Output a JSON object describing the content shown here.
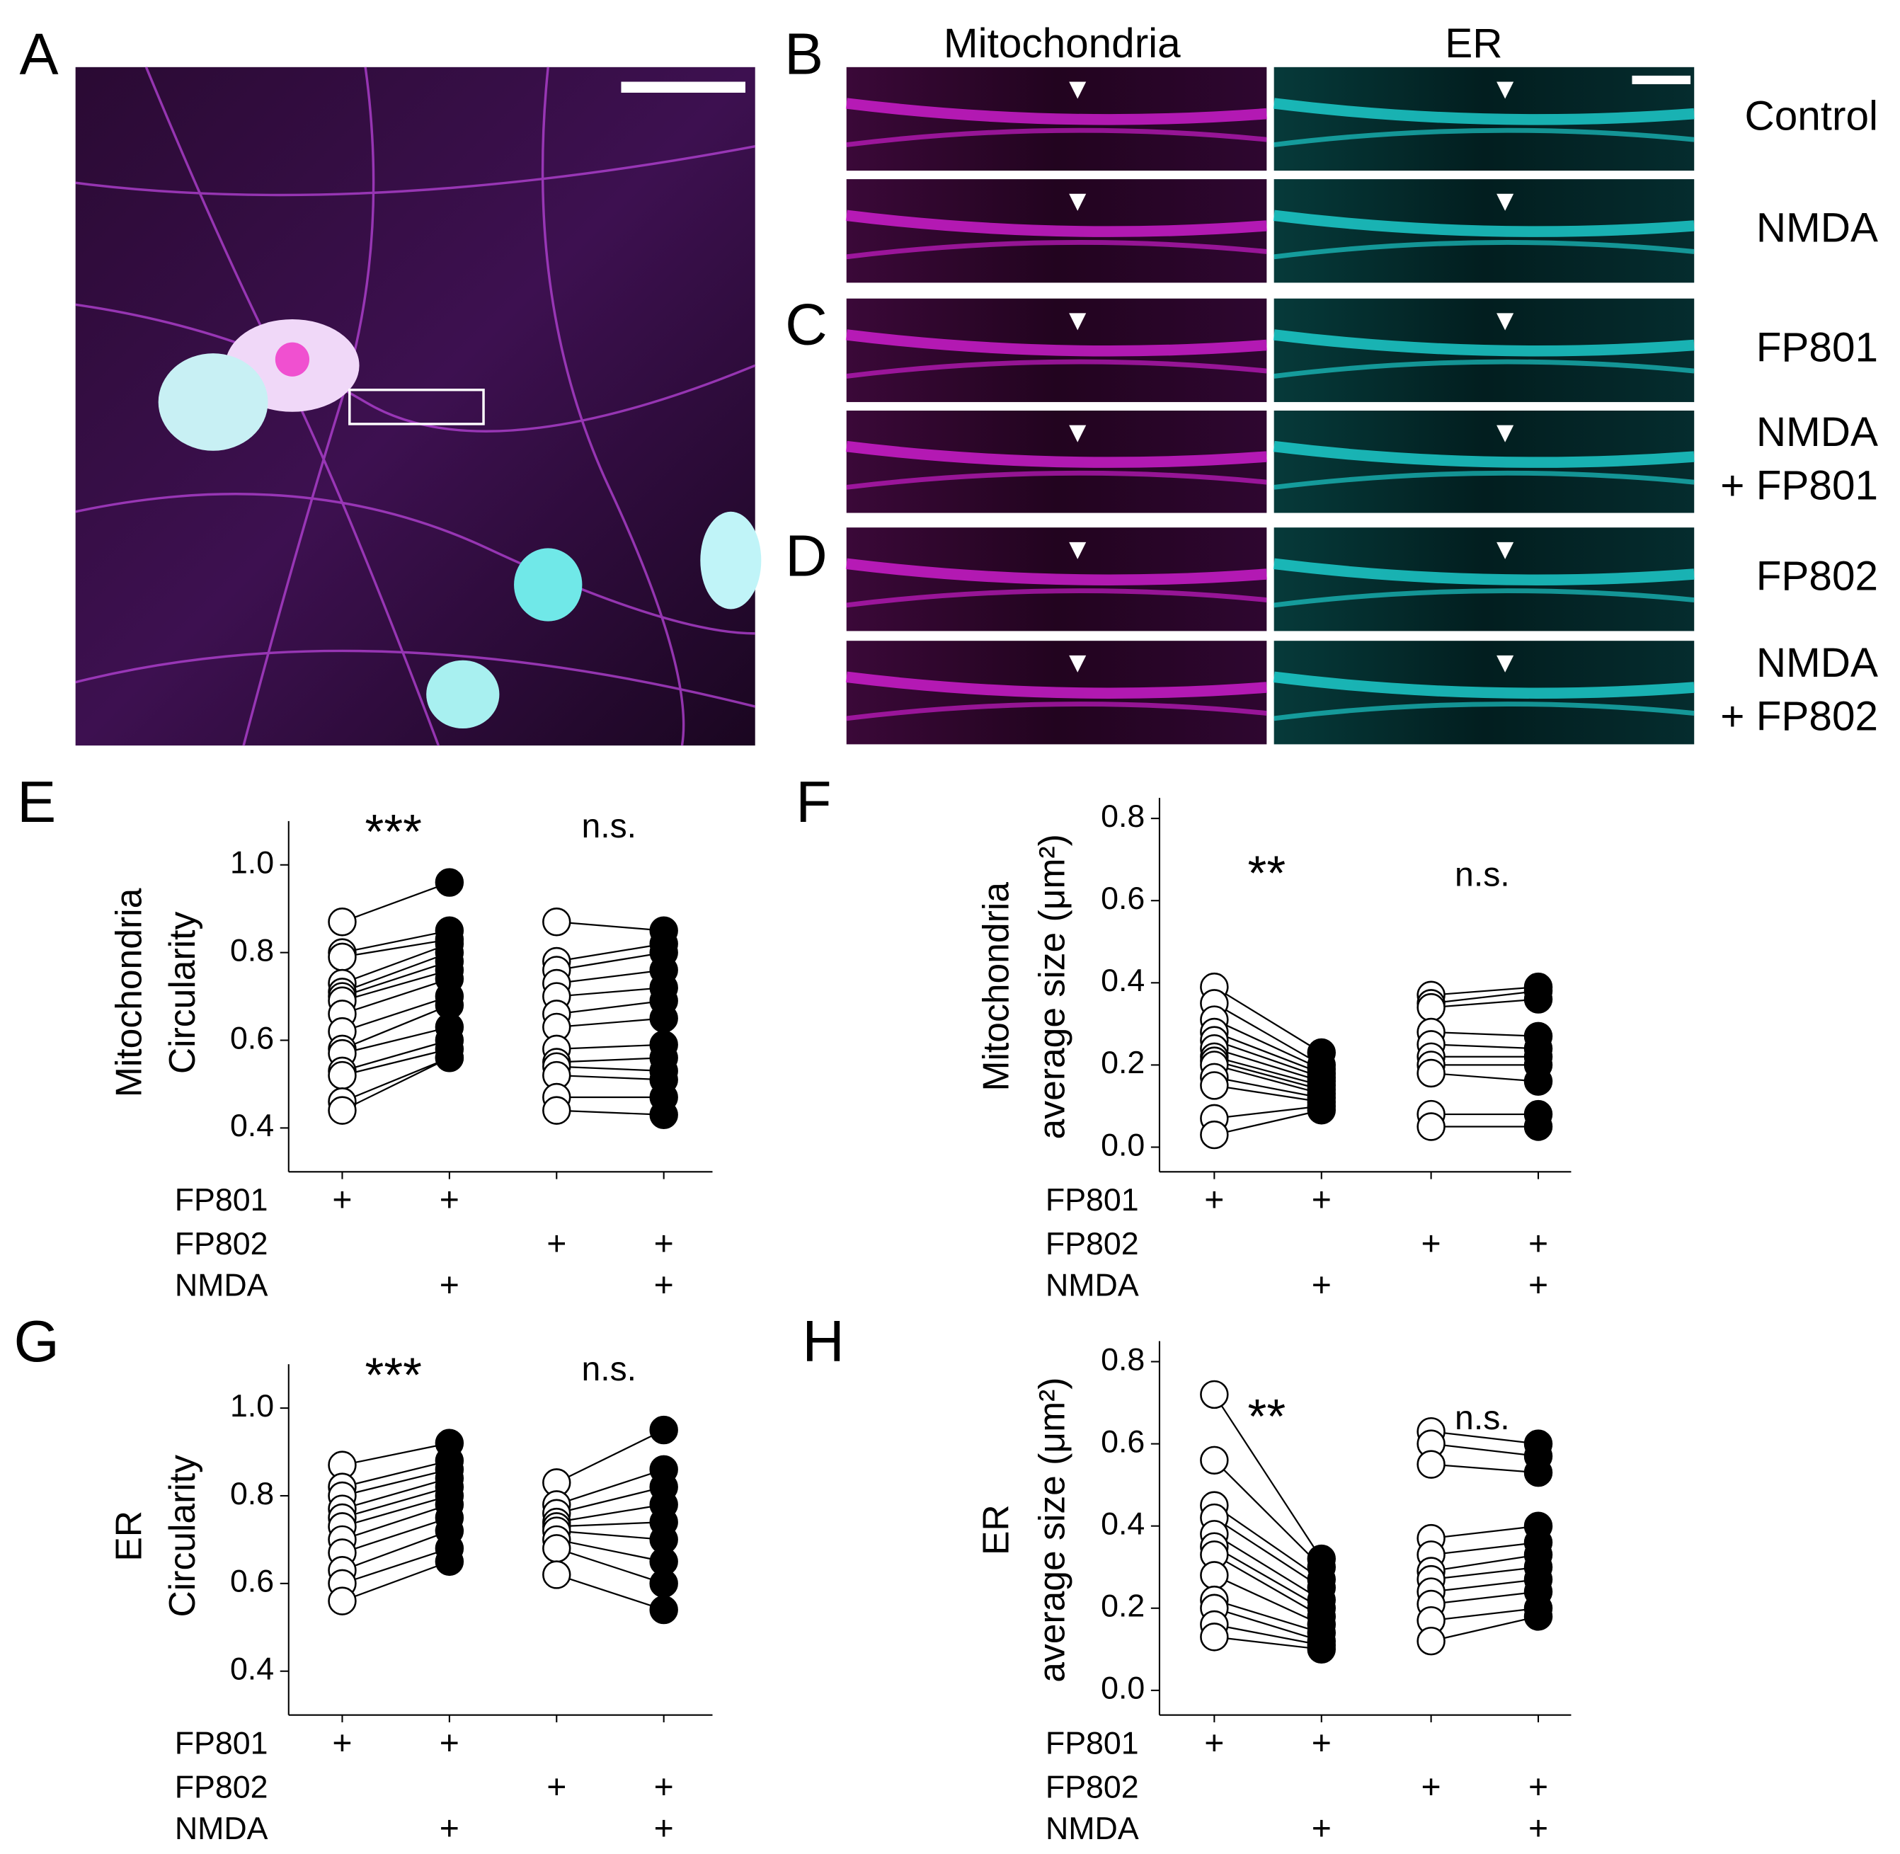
{
  "panel_labels": [
    "A",
    "B",
    "C",
    "D",
    "E",
    "F",
    "G",
    "H"
  ],
  "column_headers": [
    "Mitochondria",
    "ER"
  ],
  "row_labels": [
    [
      "Control"
    ],
    [
      "NMDA"
    ],
    [
      "FP801"
    ],
    [
      "NMDA",
      "+ FP801"
    ],
    [
      "FP802"
    ],
    [
      "NMDA",
      "+ FP802"
    ]
  ],
  "chart_data": [
    {
      "type": "paired",
      "ylabel": [
        "Mitochondria",
        "Circularity"
      ],
      "ylim": [
        0.3,
        1.1
      ],
      "yticks": [
        0.4,
        0.6,
        0.8,
        {
          "value": 1.0,
          "label": "1.0"
        }
      ],
      "annotations": [
        "***",
        "n.s."
      ],
      "conditions": [
        {
          "name": "FP801",
          "columns": [
            "+",
            "+",
            null,
            null
          ]
        },
        {
          "name": "FP802",
          "columns": [
            null,
            null,
            "+",
            "+"
          ]
        },
        {
          "name": "NMDA",
          "columns": [
            null,
            "+",
            null,
            "+"
          ]
        }
      ],
      "groups": [
        {
          "before": [
            0.87,
            0.8,
            0.79,
            0.73,
            0.71,
            0.7,
            0.69,
            0.66,
            0.62,
            0.58,
            0.57,
            0.53,
            0.52,
            0.46,
            0.44
          ],
          "after": [
            0.96,
            0.85,
            0.83,
            0.82,
            0.8,
            0.78,
            0.76,
            0.74,
            0.7,
            0.68,
            0.63,
            0.6,
            0.58,
            0.56,
            0.56
          ]
        },
        {
          "before": [
            0.87,
            0.78,
            0.76,
            0.73,
            0.7,
            0.66,
            0.63,
            0.58,
            0.55,
            0.54,
            0.52,
            0.47,
            0.44
          ],
          "after": [
            0.85,
            0.82,
            0.8,
            0.76,
            0.72,
            0.69,
            0.65,
            0.59,
            0.56,
            0.53,
            0.51,
            0.47,
            0.43
          ]
        }
      ]
    },
    {
      "type": "paired",
      "ylabel": [
        "Mitochondria",
        "average size (μm²)"
      ],
      "ylim": [
        -0.06,
        0.85
      ],
      "yticks": [
        {
          "value": 0,
          "label": "0.0"
        },
        0.2,
        0.4,
        0.6,
        0.8
      ],
      "annotations": [
        "**",
        "n.s."
      ],
      "conditions": [
        {
          "name": "FP801",
          "columns": [
            "+",
            "+",
            null,
            null
          ]
        },
        {
          "name": "FP802",
          "columns": [
            null,
            null,
            "+",
            "+"
          ]
        },
        {
          "name": "NMDA",
          "columns": [
            null,
            "+",
            null,
            "+"
          ]
        }
      ],
      "groups": [
        {
          "before": [
            0.39,
            0.35,
            0.31,
            0.28,
            0.26,
            0.24,
            0.22,
            0.21,
            0.2,
            0.17,
            0.15,
            0.07,
            0.03
          ],
          "after": [
            0.23,
            0.2,
            0.19,
            0.18,
            0.17,
            0.16,
            0.15,
            0.14,
            0.13,
            0.12,
            0.11,
            0.1,
            0.09
          ]
        },
        {
          "before": [
            0.37,
            0.35,
            0.34,
            0.28,
            0.25,
            0.22,
            0.2,
            0.18,
            0.08,
            0.05
          ],
          "after": [
            0.39,
            0.38,
            0.36,
            0.27,
            0.24,
            0.22,
            0.2,
            0.16,
            0.08,
            0.05
          ]
        }
      ]
    },
    {
      "type": "paired",
      "ylabel": [
        "ER",
        "Circularity"
      ],
      "ylim": [
        0.3,
        1.1
      ],
      "yticks": [
        0.4,
        0.6,
        0.8,
        {
          "value": 1.0,
          "label": "1.0"
        }
      ],
      "annotations": [
        "***",
        "n.s."
      ],
      "conditions": [
        {
          "name": "FP801",
          "columns": [
            "+",
            "+",
            null,
            null
          ]
        },
        {
          "name": "FP802",
          "columns": [
            null,
            null,
            "+",
            "+"
          ]
        },
        {
          "name": "NMDA",
          "columns": [
            null,
            "+",
            null,
            "+"
          ]
        }
      ],
      "groups": [
        {
          "before": [
            0.87,
            0.82,
            0.8,
            0.77,
            0.75,
            0.73,
            0.7,
            0.67,
            0.63,
            0.6,
            0.56
          ],
          "after": [
            0.92,
            0.88,
            0.86,
            0.84,
            0.82,
            0.8,
            0.78,
            0.75,
            0.72,
            0.68,
            0.65
          ]
        },
        {
          "before": [
            0.83,
            0.78,
            0.76,
            0.74,
            0.73,
            0.72,
            0.7,
            0.68,
            0.62
          ],
          "after": [
            0.95,
            0.86,
            0.82,
            0.78,
            0.74,
            0.7,
            0.65,
            0.6,
            0.54
          ]
        }
      ]
    },
    {
      "type": "paired",
      "ylabel": [
        "ER",
        "average size (μm²)"
      ],
      "ylim": [
        -0.06,
        0.85
      ],
      "yticks": [
        {
          "value": 0,
          "label": "0.0"
        },
        0.2,
        0.4,
        0.6,
        0.8
      ],
      "annotations": [
        "**",
        "n.s."
      ],
      "conditions": [
        {
          "name": "FP801",
          "columns": [
            "+",
            "+",
            null,
            null
          ]
        },
        {
          "name": "FP802",
          "columns": [
            null,
            null,
            "+",
            "+"
          ]
        },
        {
          "name": "NMDA",
          "columns": [
            null,
            "+",
            null,
            "+"
          ]
        }
      ],
      "groups": [
        {
          "before": [
            0.72,
            0.56,
            0.45,
            0.42,
            0.38,
            0.35,
            0.33,
            0.28,
            0.22,
            0.2,
            0.16,
            0.13
          ],
          "after": [
            0.32,
            0.3,
            0.27,
            0.25,
            0.22,
            0.2,
            0.18,
            0.16,
            0.14,
            0.12,
            0.11,
            0.1
          ]
        },
        {
          "before": [
            0.63,
            0.6,
            0.55,
            0.37,
            0.33,
            0.29,
            0.27,
            0.24,
            0.21,
            0.17,
            0.12
          ],
          "after": [
            0.6,
            0.57,
            0.53,
            0.4,
            0.36,
            0.33,
            0.3,
            0.27,
            0.24,
            0.2,
            0.18
          ]
        }
      ]
    }
  ]
}
